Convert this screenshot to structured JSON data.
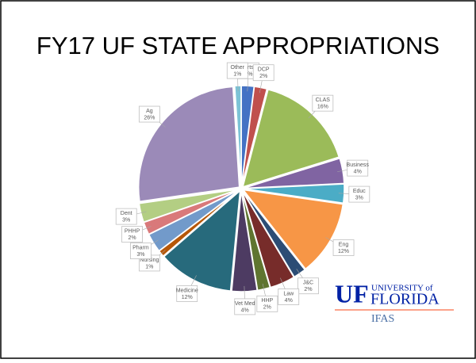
{
  "chart_data": {
    "type": "pie",
    "title": "FY17 UF STATE APPROPRIATIONS",
    "categories": [
      "Arts",
      "DCP",
      "CLAS",
      "Business",
      "Educ",
      "Eng",
      "J&C",
      "Law",
      "HHP",
      "Vet Med",
      "Medicine",
      "Nursing",
      "Pharm",
      "PHHP",
      "Dent",
      "Ag",
      "Other"
    ],
    "values": [
      2,
      2,
      16,
      4,
      3,
      12,
      2,
      4,
      2,
      4,
      12,
      1,
      3,
      2,
      3,
      26,
      1
    ],
    "value_labels": [
      "2%",
      "2%",
      "16%",
      "4%",
      "3%",
      "12%",
      "2%",
      "4%",
      "2%",
      "4%",
      "12%",
      "1%",
      "3%",
      "2%",
      "3%",
      "26%",
      "1%"
    ],
    "colors": [
      "#4472c4",
      "#c0504d",
      "#9bbb59",
      "#8064a2",
      "#4bacc6",
      "#f79646",
      "#2c4d75",
      "#772c2a",
      "#5f7530",
      "#4d3b62",
      "#276a7c",
      "#b65708",
      "#729aca",
      "#d9797a",
      "#b3ce83",
      "#9b8ab8",
      "#7cc3d6"
    ]
  },
  "logo": {
    "mark": "UF",
    "university": "UNIVERSITY of",
    "name": "FLORIDA",
    "unit": "IFAS"
  }
}
